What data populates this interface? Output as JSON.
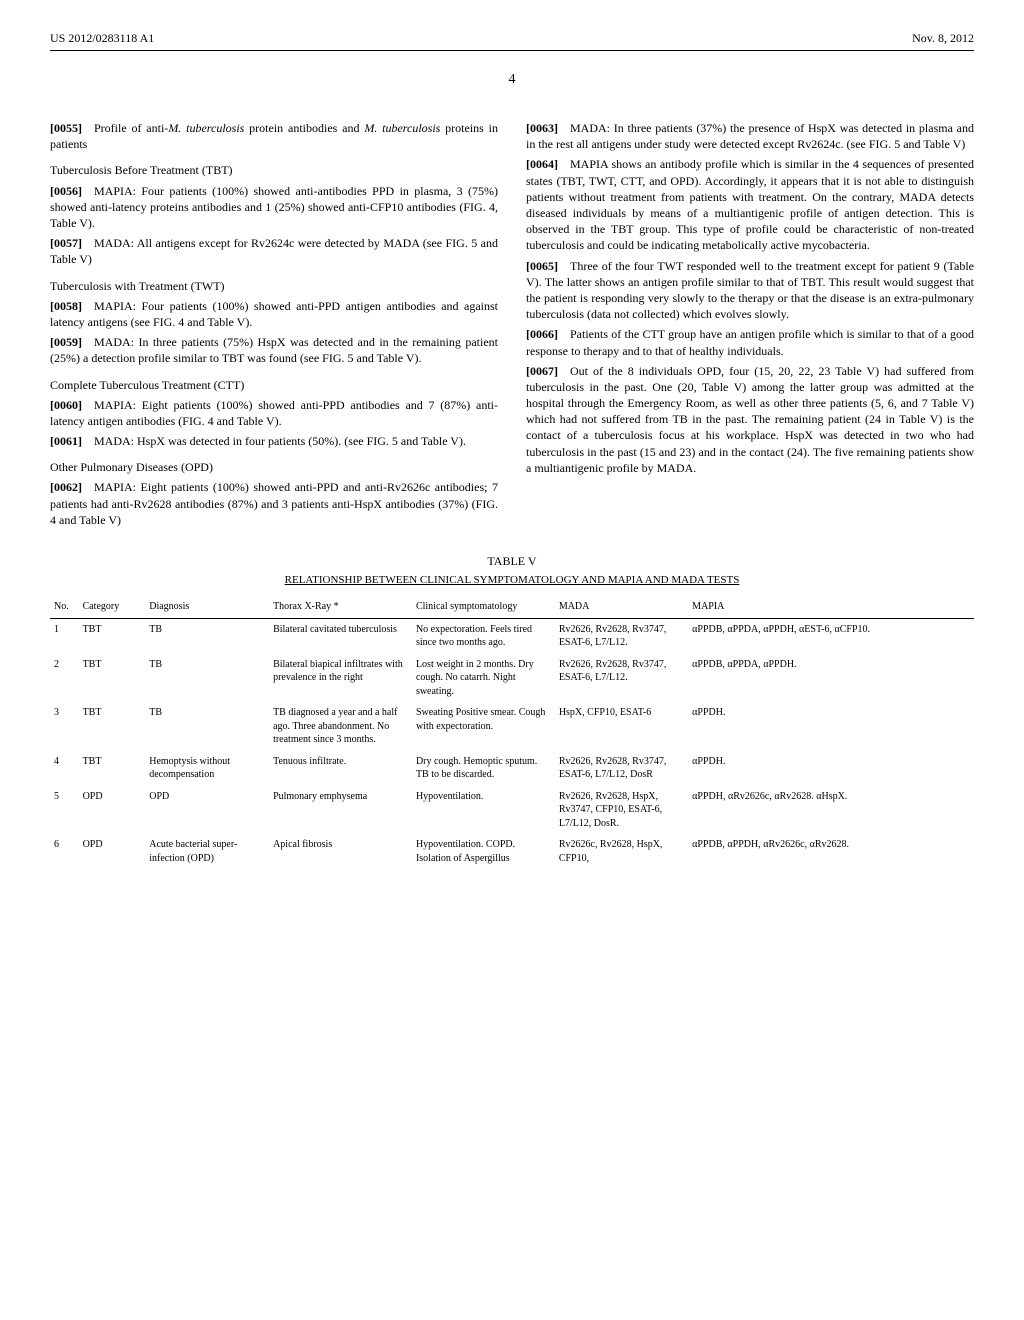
{
  "header": {
    "pub_number": "US 2012/0283118 A1",
    "pub_date": "Nov. 8, 2012",
    "page_num": "4"
  },
  "paragraphs": [
    {
      "num": "[0055]",
      "text": "Profile of anti-M. tuberculosis protein antibodies and M. tuberculosis proteins in patients"
    },
    {
      "head": "Tuberculosis Before Treatment (TBT)"
    },
    {
      "num": "[0056]",
      "text": "MAPIA: Four patients (100%) showed anti-antibodies PPD in plasma, 3 (75%) showed anti-latency proteins antibodies and 1 (25%) showed anti-CFP10 antibodies (FIG. 4, Table V)."
    },
    {
      "num": "[0057]",
      "text": "MADA: All antigens except for Rv2624c were detected by MADA (see FIG. 5 and Table V)"
    },
    {
      "head": "Tuberculosis with Treatment (TWT)"
    },
    {
      "num": "[0058]",
      "text": "MAPIA: Four patients (100%) showed anti-PPD antigen antibodies and against latency antigens (see FIG. 4 and Table V)."
    },
    {
      "num": "[0059]",
      "text": "MADA: In three patients (75%) HspX was detected and in the remaining patient (25%) a detection profile similar to TBT was found (see FIG. 5 and Table V)."
    },
    {
      "head": "Complete Tuberculous Treatment (CTT)"
    },
    {
      "num": "[0060]",
      "text": "MAPIA: Eight patients (100%) showed anti-PPD antibodies and 7 (87%) anti-latency antigen antibodies (FIG. 4 and Table V)."
    },
    {
      "num": "[0061]",
      "text": "MADA: HspX was detected in four patients (50%). (see FIG. 5 and Table V)."
    },
    {
      "head": "Other Pulmonary Diseases (OPD)"
    },
    {
      "num": "[0062]",
      "text": "MAPIA: Eight patients (100%) showed anti-PPD and anti-Rv2626c antibodies; 7 patients had anti-Rv2628 antibodies (87%) and 3 patients anti-HspX antibodies (37%) (FIG. 4 and Table V)"
    },
    {
      "num": "[0063]",
      "text": "MADA: In three patients (37%) the presence of HspX was detected in plasma and in the rest all antigens under study were detected except Rv2624c. (see FIG. 5 and Table V)"
    },
    {
      "num": "[0064]",
      "text": "MAPIA shows an antibody profile which is similar in the 4 sequences of presented states (TBT, TWT, CTT, and OPD). Accordingly, it appears that it is not able to distinguish patients without treatment from patients with treatment. On the contrary, MADA detects diseased individuals by means of a multiantigenic profile of antigen detection. This is observed in the TBT group. This type of profile could be characteristic of non-treated tuberculosis and could be indicating metabolically active mycobacteria."
    },
    {
      "num": "[0065]",
      "text": "Three of the four TWT responded well to the treatment except for patient 9 (Table V). The latter shows an antigen profile similar to that of TBT. This result would suggest that the patient is responding very slowly to the therapy or that the disease is an extra-pulmonary tuberculosis (data not collected) which evolves slowly."
    },
    {
      "num": "[0066]",
      "text": "Patients of the CTT group have an antigen profile which is similar to that of a good response to therapy and to that of healthy individuals."
    },
    {
      "num": "[0067]",
      "text": "Out of the 8 individuals OPD, four (15, 20, 22, 23 Table V) had suffered from tuberculosis in the past. One (20, Table V) among the latter group was admitted at the hospital through the Emergency Room, as well as other three patients (5, 6, and 7 Table V) which had not suffered from TB in the past. The remaining patient (24 in Table V) is the contact of a tuberculosis focus at his workplace. HspX was detected in two who had tuberculosis in the past (15 and 23) and in the contact (24). The five remaining patients show a multiantigenic profile by MADA."
    }
  ],
  "table": {
    "title": "TABLE V",
    "caption": "RELATIONSHIP BETWEEN CLINICAL SYMPTOMATOLOGY AND MAPIA AND MADA TESTS",
    "columns": [
      "No.",
      "Category",
      "Diagnosis",
      "Thorax X-Ray *",
      "Clinical symptomatology",
      "MADA",
      "MAPIA"
    ],
    "rows": [
      [
        "1",
        "TBT",
        "TB",
        "Bilateral cavitated tuberculosis",
        "No expectoration. Feels tired since two months ago.",
        "Rv2626, Rv2628, Rv3747, ESAT-6, L7/L12.",
        "αPPDB, αPPDA, αPPDH, αEST-6, αCFP10."
      ],
      [
        "2",
        "TBT",
        "TB",
        "Bilateral biapical infiltrates with prevalence in the right",
        "Lost weight in 2 months. Dry cough. No catarrh. Night sweating.",
        "Rv2626, Rv2628, Rv3747, ESAT-6, L7/L12.",
        "αPPDB, αPPDA, αPPDH."
      ],
      [
        "3",
        "TBT",
        "TB",
        "TB diagnosed a year and a half ago. Three abandonment. No treatment since 3 months.",
        "Sweating Positive smear. Cough with expectoration.",
        "HspX, CFP10, ESAT-6",
        "αPPDH."
      ],
      [
        "4",
        "TBT",
        "Hemoptysis without decompensation",
        "Tenuous infiltrate.",
        "Dry cough. Hemoptic sputum. TB to be discarded.",
        "Rv2626, Rv2628, Rv3747, ESAT-6, L7/L12, DosR",
        "αPPDH."
      ],
      [
        "5",
        "OPD",
        "OPD",
        "Pulmonary emphysema",
        "Hypoventilation.",
        "Rv2626, Rv2628, HspX, Rv3747, CFP10, ESAT-6, L7/L12, DosR.",
        "αPPDH, αRv2626c, αRv2628. αHspX."
      ],
      [
        "6",
        "OPD",
        "Acute bacterial super-infection (OPD)",
        "Apical fibrosis",
        "Hypoventilation. COPD. Isolation of Aspergillus",
        "Rv2626c, Rv2628, HspX, CFP10,",
        "αPPDB, αPPDH, αRv2626c, αRv2628."
      ]
    ]
  }
}
